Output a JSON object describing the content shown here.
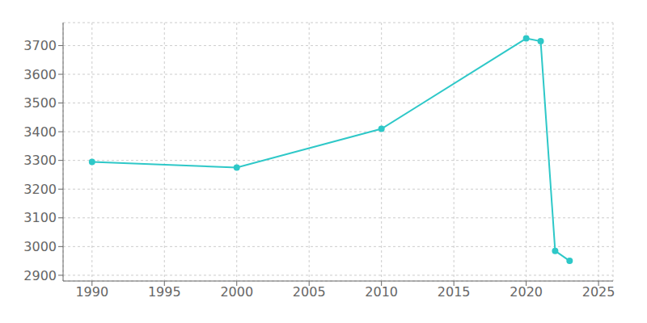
{
  "chart_data": {
    "type": "line",
    "x": [
      1990,
      2000,
      2010,
      2020,
      2021,
      2022,
      2023
    ],
    "values": [
      3295,
      3275,
      3410,
      3725,
      3715,
      2985,
      2950
    ],
    "color": "#2EC8C8",
    "marker": "circle",
    "xlim": [
      1988,
      2026
    ],
    "ylim": [
      2880,
      3780
    ],
    "xticks": [
      1990,
      1995,
      2000,
      2005,
      2010,
      2015,
      2020,
      2025
    ],
    "yticks": [
      2900,
      3000,
      3100,
      3200,
      3300,
      3400,
      3500,
      3600,
      3700
    ],
    "grid": true
  }
}
